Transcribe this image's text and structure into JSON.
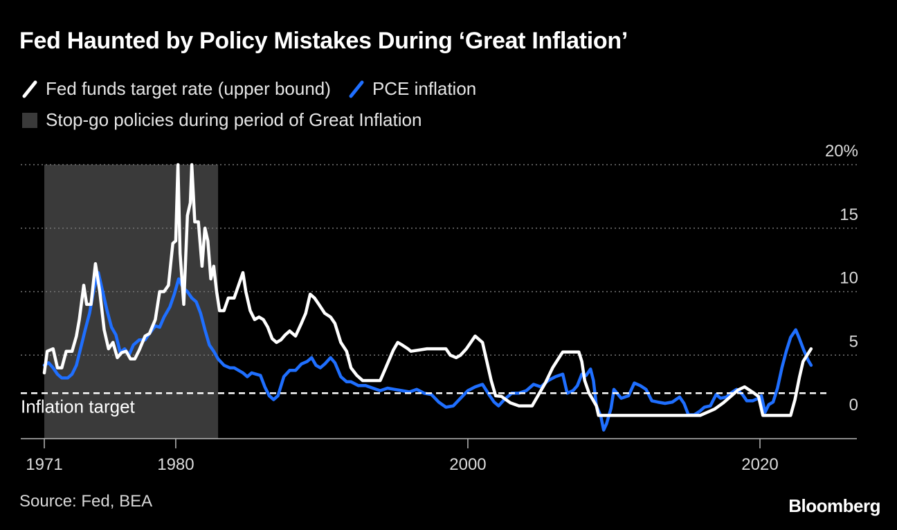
{
  "chart_data": {
    "type": "line",
    "title": "Fed Haunted by Policy Mistakes During ‘Great Inflation’",
    "subtitle": "",
    "source": "Source: Fed, BEA",
    "brand": "Bloomberg",
    "xlabel": "",
    "ylabel": "",
    "xlim": [
      1971,
      2024.5
    ],
    "ylim": [
      -1.3,
      20
    ],
    "x_ticks": [
      1971,
      1980,
      2000,
      2020
    ],
    "x_tick_labels": [
      "1971",
      "1980",
      "2000",
      "2020"
    ],
    "y_ticks": [
      0,
      5,
      10,
      15,
      20
    ],
    "y_tick_labels": [
      "0",
      "5",
      "10",
      "15",
      "20%"
    ],
    "grid": "horizontal-dotted",
    "legend_placement": "top-left",
    "shaded_region": {
      "label": "Stop-go policies during period of Great Inflation",
      "x_start": 1971,
      "x_end": 1982.9,
      "color": "#3a3a3a"
    },
    "reference_line": {
      "label": "Inflation target",
      "y": 2,
      "style": "dashed",
      "color": "#ffffff"
    },
    "series": [
      {
        "name": "Fed funds target rate (upper bound)",
        "color": "#ffffff",
        "points": [
          [
            1971.0,
            3.6
          ],
          [
            1971.2,
            5.3
          ],
          [
            1971.6,
            5.5
          ],
          [
            1971.9,
            4.0
          ],
          [
            1972.2,
            4.0
          ],
          [
            1972.5,
            5.3
          ],
          [
            1972.9,
            5.3
          ],
          [
            1973.2,
            6.5
          ],
          [
            1973.4,
            7.8
          ],
          [
            1973.7,
            10.5
          ],
          [
            1973.9,
            9.0
          ],
          [
            1974.2,
            9.0
          ],
          [
            1974.5,
            12.2
          ],
          [
            1974.8,
            10.0
          ],
          [
            1975.1,
            7.0
          ],
          [
            1975.4,
            5.5
          ],
          [
            1975.7,
            6.0
          ],
          [
            1976.0,
            4.8
          ],
          [
            1976.3,
            5.2
          ],
          [
            1976.6,
            5.3
          ],
          [
            1976.9,
            4.7
          ],
          [
            1977.2,
            4.7
          ],
          [
            1977.5,
            5.4
          ],
          [
            1977.9,
            6.5
          ],
          [
            1978.2,
            6.7
          ],
          [
            1978.6,
            7.8
          ],
          [
            1978.9,
            10.0
          ],
          [
            1979.2,
            10.0
          ],
          [
            1979.5,
            10.5
          ],
          [
            1979.8,
            13.8
          ],
          [
            1980.0,
            14.0
          ],
          [
            1980.15,
            20.0
          ],
          [
            1980.3,
            13.0
          ],
          [
            1980.55,
            9.0
          ],
          [
            1980.8,
            16.0
          ],
          [
            1981.0,
            17.0
          ],
          [
            1981.1,
            20.0
          ],
          [
            1981.3,
            15.5
          ],
          [
            1981.55,
            15.5
          ],
          [
            1981.8,
            12.0
          ],
          [
            1982.0,
            15.0
          ],
          [
            1982.2,
            14.0
          ],
          [
            1982.4,
            11.0
          ],
          [
            1982.6,
            12.0
          ],
          [
            1982.8,
            10.0
          ],
          [
            1983.0,
            8.5
          ],
          [
            1983.3,
            8.5
          ],
          [
            1983.6,
            9.5
          ],
          [
            1984.0,
            9.5
          ],
          [
            1984.3,
            10.5
          ],
          [
            1984.6,
            11.5
          ],
          [
            1984.8,
            10.0
          ],
          [
            1985.1,
            8.5
          ],
          [
            1985.4,
            7.8
          ],
          [
            1985.7,
            8.0
          ],
          [
            1986.0,
            7.8
          ],
          [
            1986.3,
            7.2
          ],
          [
            1986.6,
            6.3
          ],
          [
            1986.9,
            6.0
          ],
          [
            1987.2,
            6.2
          ],
          [
            1987.5,
            6.6
          ],
          [
            1987.8,
            6.9
          ],
          [
            1988.2,
            6.5
          ],
          [
            1988.6,
            7.5
          ],
          [
            1988.9,
            8.3
          ],
          [
            1989.2,
            9.8
          ],
          [
            1989.5,
            9.5
          ],
          [
            1989.8,
            9.0
          ],
          [
            1990.2,
            8.3
          ],
          [
            1990.6,
            8.0
          ],
          [
            1990.9,
            7.5
          ],
          [
            1991.3,
            6.0
          ],
          [
            1991.7,
            5.3
          ],
          [
            1992.0,
            4.0
          ],
          [
            1992.4,
            3.4
          ],
          [
            1992.8,
            3.0
          ],
          [
            1993.5,
            3.0
          ],
          [
            1994.0,
            3.0
          ],
          [
            1994.3,
            3.8
          ],
          [
            1994.6,
            4.6
          ],
          [
            1994.9,
            5.4
          ],
          [
            1995.2,
            6.0
          ],
          [
            1995.5,
            5.8
          ],
          [
            1995.9,
            5.5
          ],
          [
            1996.1,
            5.3
          ],
          [
            1997.2,
            5.5
          ],
          [
            1997.5,
            5.5
          ],
          [
            1998.5,
            5.5
          ],
          [
            1998.8,
            5.0
          ],
          [
            1999.2,
            4.8
          ],
          [
            1999.5,
            5.0
          ],
          [
            1999.9,
            5.5
          ],
          [
            2000.2,
            6.0
          ],
          [
            2000.5,
            6.5
          ],
          [
            2001.0,
            6.0
          ],
          [
            2001.3,
            4.5
          ],
          [
            2001.6,
            3.0
          ],
          [
            2001.9,
            1.8
          ],
          [
            2002.3,
            1.75
          ],
          [
            2002.9,
            1.25
          ],
          [
            2003.5,
            1.0
          ],
          [
            2004.4,
            1.0
          ],
          [
            2004.8,
            1.8
          ],
          [
            2005.3,
            2.8
          ],
          [
            2005.8,
            4.0
          ],
          [
            2006.3,
            4.9
          ],
          [
            2006.5,
            5.25
          ],
          [
            2007.6,
            5.25
          ],
          [
            2007.8,
            4.5
          ],
          [
            2008.0,
            3.0
          ],
          [
            2008.3,
            2.0
          ],
          [
            2008.8,
            1.0
          ],
          [
            2008.95,
            0.25
          ],
          [
            2015.9,
            0.25
          ],
          [
            2016.9,
            0.75
          ],
          [
            2017.5,
            1.25
          ],
          [
            2018.0,
            1.75
          ],
          [
            2018.5,
            2.25
          ],
          [
            2018.95,
            2.5
          ],
          [
            2019.6,
            2.0
          ],
          [
            2019.9,
            1.75
          ],
          [
            2020.2,
            0.25
          ],
          [
            2022.1,
            0.25
          ],
          [
            2022.4,
            1.5
          ],
          [
            2022.7,
            3.25
          ],
          [
            2022.95,
            4.5
          ],
          [
            2023.5,
            5.5
          ]
        ]
      },
      {
        "name": "PCE inflation",
        "color": "#1f6fff",
        "points": [
          [
            1971.0,
            4.2
          ],
          [
            1971.3,
            4.4
          ],
          [
            1971.6,
            4.0
          ],
          [
            1971.9,
            3.5
          ],
          [
            1972.2,
            3.2
          ],
          [
            1972.6,
            3.2
          ],
          [
            1972.9,
            3.5
          ],
          [
            1973.2,
            4.2
          ],
          [
            1973.5,
            5.6
          ],
          [
            1973.8,
            7.0
          ],
          [
            1974.1,
            8.3
          ],
          [
            1974.4,
            10.2
          ],
          [
            1974.7,
            11.5
          ],
          [
            1975.0,
            10.0
          ],
          [
            1975.3,
            8.5
          ],
          [
            1975.6,
            7.2
          ],
          [
            1975.9,
            6.6
          ],
          [
            1976.2,
            5.2
          ],
          [
            1976.5,
            5.5
          ],
          [
            1976.8,
            5.0
          ],
          [
            1977.1,
            5.8
          ],
          [
            1977.5,
            6.2
          ],
          [
            1977.9,
            6.2
          ],
          [
            1978.2,
            6.7
          ],
          [
            1978.6,
            7.3
          ],
          [
            1978.9,
            7.2
          ],
          [
            1979.2,
            8.0
          ],
          [
            1979.6,
            8.8
          ],
          [
            1979.9,
            9.8
          ],
          [
            1980.2,
            11.0
          ],
          [
            1980.5,
            10.3
          ],
          [
            1980.8,
            10.0
          ],
          [
            1981.1,
            9.5
          ],
          [
            1981.4,
            9.2
          ],
          [
            1981.7,
            8.3
          ],
          [
            1982.0,
            7.0
          ],
          [
            1982.3,
            5.8
          ],
          [
            1982.6,
            5.3
          ],
          [
            1982.9,
            4.7
          ],
          [
            1983.3,
            4.2
          ],
          [
            1983.7,
            4.0
          ],
          [
            1984.0,
            4.0
          ],
          [
            1984.3,
            3.8
          ],
          [
            1984.6,
            3.6
          ],
          [
            1984.9,
            3.3
          ],
          [
            1985.2,
            3.6
          ],
          [
            1985.5,
            3.5
          ],
          [
            1985.8,
            3.4
          ],
          [
            1986.1,
            2.5
          ],
          [
            1986.4,
            1.8
          ],
          [
            1986.7,
            1.5
          ],
          [
            1987.0,
            1.8
          ],
          [
            1987.4,
            3.3
          ],
          [
            1987.8,
            3.8
          ],
          [
            1988.2,
            3.8
          ],
          [
            1988.6,
            4.3
          ],
          [
            1989.0,
            4.5
          ],
          [
            1989.3,
            4.8
          ],
          [
            1989.6,
            4.2
          ],
          [
            1989.9,
            4.0
          ],
          [
            1990.2,
            4.3
          ],
          [
            1990.6,
            4.8
          ],
          [
            1990.9,
            4.4
          ],
          [
            1991.3,
            3.3
          ],
          [
            1991.7,
            2.9
          ],
          [
            1992.0,
            2.9
          ],
          [
            1992.5,
            2.6
          ],
          [
            1993.0,
            2.6
          ],
          [
            1993.5,
            2.4
          ],
          [
            1994.0,
            2.2
          ],
          [
            1994.5,
            2.4
          ],
          [
            1995.0,
            2.3
          ],
          [
            1995.5,
            2.2
          ],
          [
            1996.0,
            2.1
          ],
          [
            1996.5,
            2.3
          ],
          [
            1997.0,
            2.0
          ],
          [
            1997.5,
            1.9
          ],
          [
            1998.0,
            1.3
          ],
          [
            1998.5,
            0.9
          ],
          [
            1999.0,
            1.0
          ],
          [
            1999.5,
            1.6
          ],
          [
            2000.0,
            2.2
          ],
          [
            2000.5,
            2.5
          ],
          [
            2001.0,
            2.7
          ],
          [
            2001.5,
            1.8
          ],
          [
            2001.8,
            1.3
          ],
          [
            2002.1,
            1.0
          ],
          [
            2002.5,
            1.5
          ],
          [
            2003.0,
            2.0
          ],
          [
            2003.5,
            2.0
          ],
          [
            2004.0,
            2.2
          ],
          [
            2004.5,
            2.7
          ],
          [
            2005.0,
            2.5
          ],
          [
            2005.5,
            3.0
          ],
          [
            2006.0,
            3.3
          ],
          [
            2006.5,
            3.5
          ],
          [
            2006.8,
            2.0
          ],
          [
            2007.2,
            2.2
          ],
          [
            2007.5,
            2.6
          ],
          [
            2007.8,
            3.5
          ],
          [
            2008.1,
            3.4
          ],
          [
            2008.4,
            3.9
          ],
          [
            2008.6,
            3.0
          ],
          [
            2008.8,
            1.0
          ],
          [
            2009.1,
            0.2
          ],
          [
            2009.3,
            -0.9
          ],
          [
            2009.5,
            -0.4
          ],
          [
            2009.8,
            0.8
          ],
          [
            2010.0,
            2.3
          ],
          [
            2010.5,
            1.6
          ],
          [
            2011.0,
            1.8
          ],
          [
            2011.4,
            2.8
          ],
          [
            2011.8,
            2.6
          ],
          [
            2012.2,
            2.3
          ],
          [
            2012.6,
            1.4
          ],
          [
            2013.0,
            1.3
          ],
          [
            2013.5,
            1.2
          ],
          [
            2014.0,
            1.3
          ],
          [
            2014.5,
            1.7
          ],
          [
            2014.8,
            1.2
          ],
          [
            2015.1,
            0.3
          ],
          [
            2015.5,
            0.3
          ],
          [
            2015.9,
            0.6
          ],
          [
            2016.2,
            0.9
          ],
          [
            2016.6,
            1.0
          ],
          [
            2017.0,
            1.9
          ],
          [
            2017.3,
            1.6
          ],
          [
            2017.7,
            1.7
          ],
          [
            2018.0,
            2.0
          ],
          [
            2018.4,
            2.3
          ],
          [
            2018.8,
            1.9
          ],
          [
            2019.1,
            1.4
          ],
          [
            2019.5,
            1.4
          ],
          [
            2019.9,
            1.6
          ],
          [
            2020.1,
            1.8
          ],
          [
            2020.35,
            0.5
          ],
          [
            2020.6,
            1.1
          ],
          [
            2020.9,
            1.3
          ],
          [
            2021.2,
            2.4
          ],
          [
            2021.5,
            4.0
          ],
          [
            2021.8,
            5.3
          ],
          [
            2022.1,
            6.4
          ],
          [
            2022.45,
            7.0
          ],
          [
            2022.7,
            6.3
          ],
          [
            2023.0,
            5.4
          ],
          [
            2023.3,
            4.6
          ],
          [
            2023.5,
            4.2
          ]
        ]
      }
    ]
  },
  "legend": {
    "fed_funds": "Fed funds target rate (upper bound)",
    "pce": "PCE inflation",
    "shaded": "Stop-go policies during period of Great Inflation"
  },
  "colors": {
    "background": "#000000",
    "fed_funds": "#ffffff",
    "pce": "#1f6fff",
    "shaded": "#3a3a3a",
    "grid": "#777777"
  }
}
